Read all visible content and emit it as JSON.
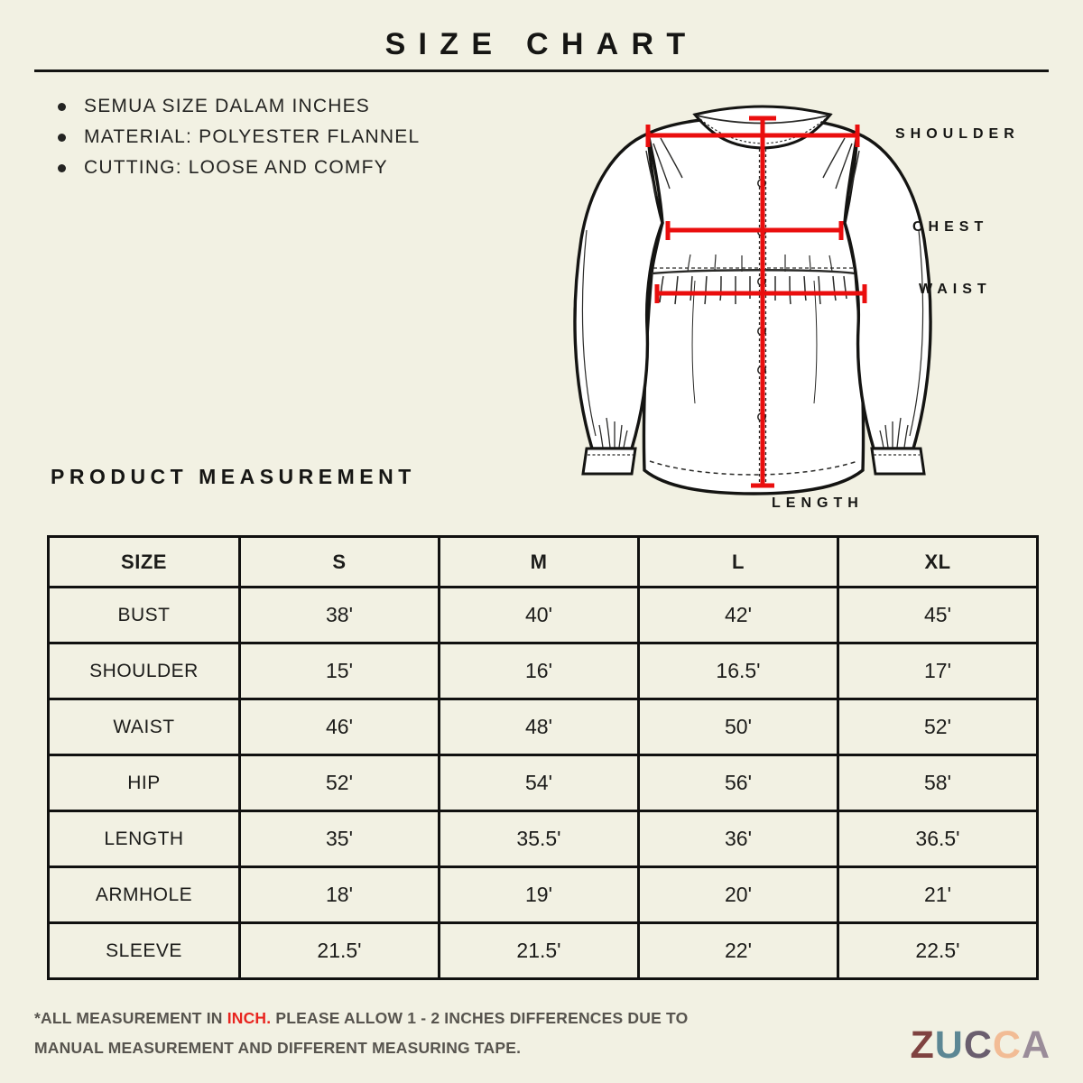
{
  "page": {
    "background": "#F2F1E3",
    "ink": "#161614"
  },
  "header": {
    "title": "SIZE CHART"
  },
  "notes": {
    "items": [
      "SEMUA SIZE DALAM INCHES",
      "MATERIAL: POLYESTER FLANNEL",
      "CUTTING: LOOSE AND COMFY"
    ]
  },
  "diagram": {
    "garment": "long-sleeve-puff-blouse",
    "line_color": "#EA0E0E",
    "labels": {
      "shoulder": "SHOULDER",
      "chest": "CHEST",
      "waist": "WAIST",
      "length": "LENGTH"
    }
  },
  "section": {
    "title": "PRODUCT MEASUREMENT"
  },
  "table": {
    "columns": [
      "SIZE",
      "S",
      "M",
      "L",
      "XL"
    ],
    "rows": [
      {
        "label": "BUST",
        "values": [
          "38'",
          "40'",
          "42'",
          "45'"
        ]
      },
      {
        "label": "SHOULDER",
        "values": [
          "15'",
          "16'",
          "16.5'",
          "17'"
        ]
      },
      {
        "label": "WAIST",
        "values": [
          "46'",
          "48'",
          "50'",
          "52'"
        ]
      },
      {
        "label": "HIP",
        "values": [
          "52'",
          "54'",
          "56'",
          "58'"
        ]
      },
      {
        "label": "LENGTH",
        "values": [
          "35'",
          "35.5'",
          "36'",
          "36.5'"
        ]
      },
      {
        "label": "ARMHOLE",
        "values": [
          "18'",
          "19'",
          "20'",
          "21'"
        ]
      },
      {
        "label": "SLEEVE",
        "values": [
          "21.5'",
          "21.5'",
          "22'",
          "22.5'"
        ]
      }
    ]
  },
  "footer": {
    "note_prefix": "*ALL MEASUREMENT IN ",
    "note_highlight": "INCH.",
    "note_suffix": " PLEASE ALLOW 1 - 2 INCHES DIFFERENCES DUE TO MANUAL MEASUREMENT AND DIFFERENT MEASURING TAPE.",
    "highlight_color": "#E8251F",
    "note_color": "#57544E",
    "brand": {
      "name": "ZUCCA",
      "letters": [
        {
          "char": "Z",
          "color": "#7F4240"
        },
        {
          "char": "U",
          "color": "#5C8794"
        },
        {
          "char": "C",
          "color": "#6A5E6E"
        },
        {
          "char": "C",
          "color": "#F2BC95"
        },
        {
          "char": "A",
          "color": "#9A8C99"
        }
      ]
    }
  }
}
